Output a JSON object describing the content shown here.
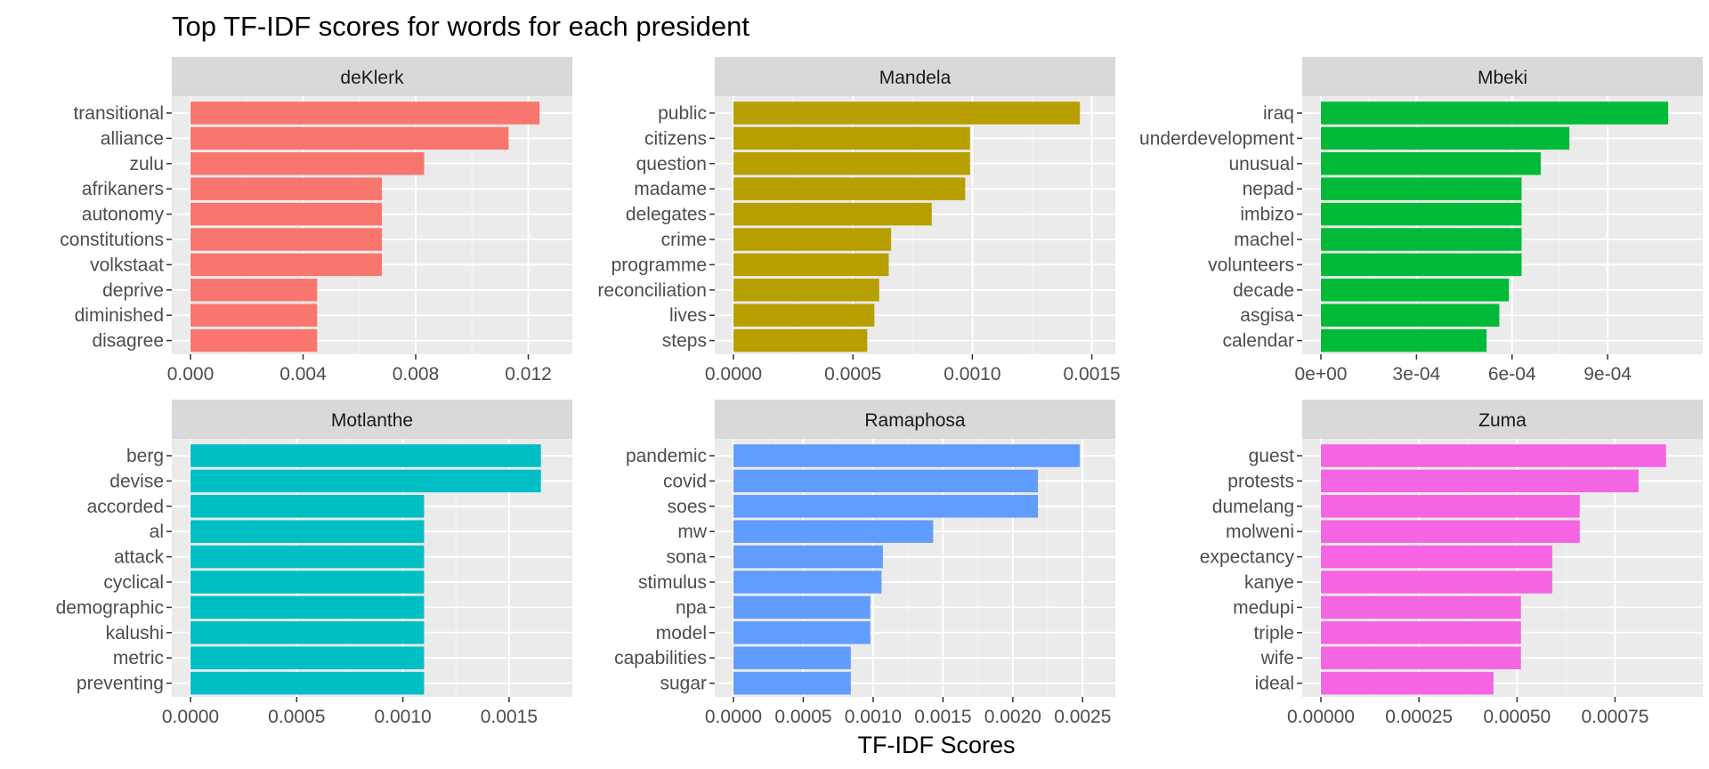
{
  "chart_data": {
    "type": "bar",
    "orientation": "horizontal",
    "title": "Top TF-IDF scores for words for each president",
    "xlabel": "TF-IDF Scores",
    "ylabel": "",
    "legend": "none",
    "facets": [
      {
        "name": "deKlerk",
        "color": "#F8766D",
        "xlim": [
          0,
          0.0129
        ],
        "ticks": [
          0,
          0.004,
          0.008,
          0.012
        ],
        "tick_labels": [
          "0.000",
          "0.004",
          "0.008",
          "0.012"
        ],
        "categories": [
          "transitional",
          "alliance",
          "zulu",
          "afrikaners",
          "autonomy",
          "constitutions",
          "volkstaat",
          "deprive",
          "diminished",
          "disagree"
        ],
        "values": [
          0.0124,
          0.0113,
          0.0083,
          0.0068,
          0.0068,
          0.0068,
          0.0068,
          0.0045,
          0.0045,
          0.0045
        ]
      },
      {
        "name": "Mandela",
        "color": "#B79F00",
        "xlim": [
          0,
          0.00152
        ],
        "ticks": [
          0,
          0.0005,
          0.001,
          0.0015
        ],
        "tick_labels": [
          "0.0000",
          "0.0005",
          "0.0010",
          "0.0015"
        ],
        "categories": [
          "public",
          "citizens",
          "question",
          "madame",
          "delegates",
          "crime",
          "programme",
          "reconciliation",
          "lives",
          "steps"
        ],
        "values": [
          0.00145,
          0.00099,
          0.00099,
          0.00097,
          0.00083,
          0.00066,
          0.00065,
          0.00061,
          0.00059,
          0.00056
        ]
      },
      {
        "name": "Mbeki",
        "color": "#00BA38",
        "xlim": [
          0,
          0.00114
        ],
        "ticks": [
          0,
          0.0003,
          0.0006,
          0.0009
        ],
        "tick_labels": [
          "0e+00",
          "3e-04",
          "6e-04",
          "9e-04"
        ],
        "categories": [
          "iraq",
          "underdevelopment",
          "unusual",
          "nepad",
          "imbizo",
          "machel",
          "volunteers",
          "decade",
          "asgisa",
          "calendar"
        ],
        "values": [
          0.00109,
          0.00078,
          0.00069,
          0.00063,
          0.00063,
          0.00063,
          0.00063,
          0.00059,
          0.00056,
          0.00052
        ]
      },
      {
        "name": "Motlanthe",
        "color": "#00BFC4",
        "xlim": [
          0,
          0.00171
        ],
        "ticks": [
          0,
          0.0005,
          0.001,
          0.0015
        ],
        "tick_labels": [
          "0.0000",
          "0.0005",
          "0.0010",
          "0.0015"
        ],
        "categories": [
          "berg",
          "devise",
          "accorded",
          "al",
          "attack",
          "cyclical",
          "demographic",
          "kalushi",
          "metric",
          "preventing"
        ],
        "values": [
          0.00165,
          0.00165,
          0.0011,
          0.0011,
          0.0011,
          0.0011,
          0.0011,
          0.0011,
          0.0011,
          0.0011
        ]
      },
      {
        "name": "Ramaphosa",
        "color": "#619CFF",
        "xlim": [
          0,
          0.0026
        ],
        "ticks": [
          0,
          0.0005,
          0.001,
          0.0015,
          0.002,
          0.0025
        ],
        "tick_labels": [
          "0.0000",
          "0.0005",
          "0.0010",
          "0.0015",
          "0.0020",
          "0.0025"
        ],
        "categories": [
          "pandemic",
          "covid",
          "soes",
          "mw",
          "sona",
          "stimulus",
          "npa",
          "model",
          "capabilities",
          "sugar"
        ],
        "values": [
          0.00248,
          0.00218,
          0.00218,
          0.00143,
          0.00107,
          0.00106,
          0.00098,
          0.00098,
          0.00084,
          0.00084
        ]
      },
      {
        "name": "Zuma",
        "color": "#F564E3",
        "xlim": [
          0,
          0.000926
        ],
        "ticks": [
          0,
          0.00025,
          0.0005,
          0.00075
        ],
        "tick_labels": [
          "0.00000",
          "0.00025",
          "0.00050",
          "0.00075"
        ],
        "categories": [
          "guest",
          "protests",
          "dumelang",
          "molweni",
          "expectancy",
          "kanye",
          "medupi",
          "triple",
          "wife",
          "ideal"
        ],
        "values": [
          0.00088,
          0.00081,
          0.00066,
          0.00066,
          0.00059,
          0.00059,
          0.00051,
          0.00051,
          0.00051,
          0.00044
        ]
      }
    ]
  }
}
